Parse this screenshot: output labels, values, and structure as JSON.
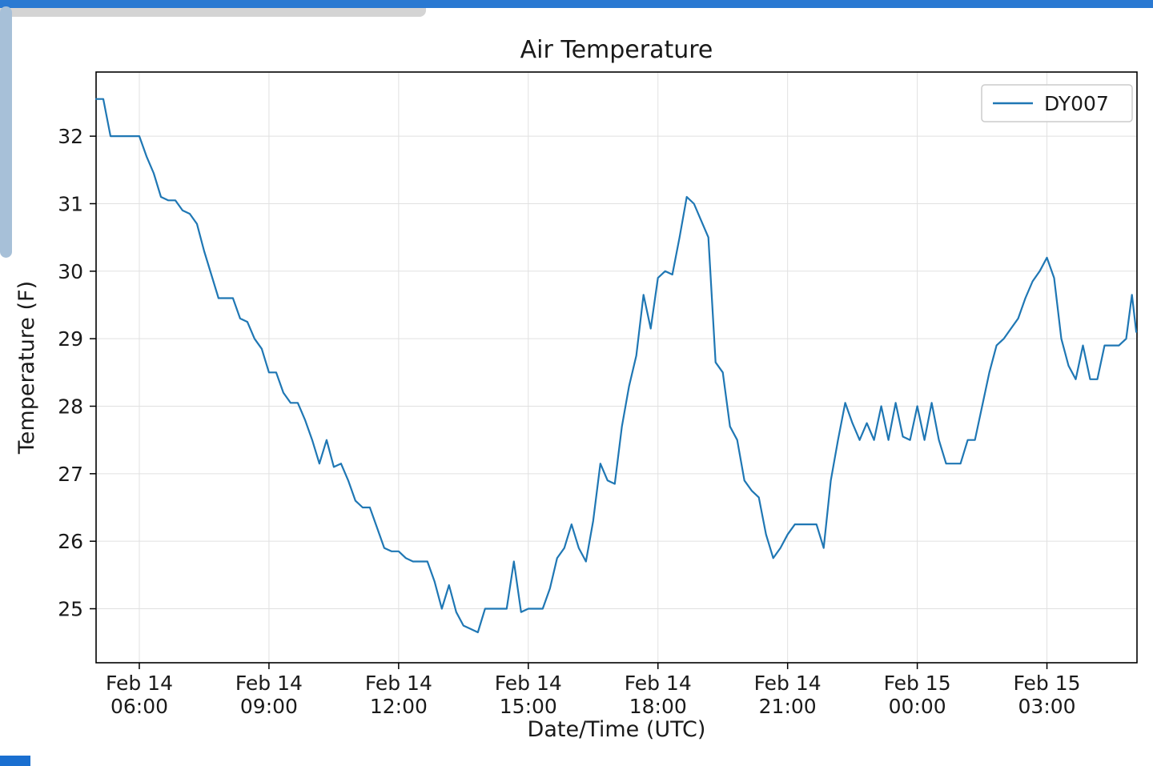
{
  "chrome": {
    "top_bar_color": "#2a79d2",
    "toolbar_remnant_color": "#d4d4d4",
    "scrollbar_color": "#a7c0d8",
    "bottom_fragment_color": "#1a6fd0",
    "background_color": "#ffffff"
  },
  "chart_data": {
    "type": "line",
    "title": "Air Temperature",
    "xlabel": "Date/Time (UTC)",
    "ylabel": "Temperature (F)",
    "grid": true,
    "grid_color": "#e1e1e1",
    "axis_color": "#000000",
    "legend": {
      "position": "upper right",
      "entries": [
        {
          "label": "DY007",
          "color": "#1f77b4"
        }
      ]
    },
    "xlim": [
      "02-14 05:00",
      "02-15 05:05"
    ],
    "ylim": [
      24.2,
      32.95
    ],
    "y_ticks": [
      25,
      26,
      27,
      28,
      29,
      30,
      31,
      32
    ],
    "x_ticks": [
      {
        "time": "02-14 06:00",
        "line1": "Feb 14",
        "line2": "06:00"
      },
      {
        "time": "02-14 09:00",
        "line1": "Feb 14",
        "line2": "09:00"
      },
      {
        "time": "02-14 12:00",
        "line1": "Feb 14",
        "line2": "12:00"
      },
      {
        "time": "02-14 15:00",
        "line1": "Feb 14",
        "line2": "15:00"
      },
      {
        "time": "02-14 18:00",
        "line1": "Feb 14",
        "line2": "18:00"
      },
      {
        "time": "02-14 21:00",
        "line1": "Feb 14",
        "line2": "21:00"
      },
      {
        "time": "02-15 00:00",
        "line1": "Feb 15",
        "line2": "00:00"
      },
      {
        "time": "02-15 03:00",
        "line1": "Feb 15",
        "line2": "03:00"
      }
    ],
    "series": [
      {
        "name": "DY007",
        "color": "#1f77b4",
        "x": [
          "02-14 05:00",
          "02-14 05:10",
          "02-14 05:20",
          "02-14 05:30",
          "02-14 05:40",
          "02-14 05:50",
          "02-14 06:00",
          "02-14 06:10",
          "02-14 06:20",
          "02-14 06:30",
          "02-14 06:40",
          "02-14 06:50",
          "02-14 07:00",
          "02-14 07:10",
          "02-14 07:20",
          "02-14 07:30",
          "02-14 07:40",
          "02-14 07:50",
          "02-14 08:00",
          "02-14 08:10",
          "02-14 08:20",
          "02-14 08:30",
          "02-14 08:40",
          "02-14 08:50",
          "02-14 09:00",
          "02-14 09:10",
          "02-14 09:20",
          "02-14 09:30",
          "02-14 09:40",
          "02-14 09:50",
          "02-14 10:00",
          "02-14 10:10",
          "02-14 10:20",
          "02-14 10:30",
          "02-14 10:40",
          "02-14 10:50",
          "02-14 11:00",
          "02-14 11:10",
          "02-14 11:20",
          "02-14 11:30",
          "02-14 11:40",
          "02-14 11:50",
          "02-14 12:00",
          "02-14 12:10",
          "02-14 12:20",
          "02-14 12:30",
          "02-14 12:40",
          "02-14 12:50",
          "02-14 13:00",
          "02-14 13:10",
          "02-14 13:20",
          "02-14 13:30",
          "02-14 13:40",
          "02-14 13:50",
          "02-14 14:00",
          "02-14 14:10",
          "02-14 14:20",
          "02-14 14:30",
          "02-14 14:40",
          "02-14 14:50",
          "02-14 15:00",
          "02-14 15:10",
          "02-14 15:20",
          "02-14 15:30",
          "02-14 15:40",
          "02-14 15:50",
          "02-14 16:00",
          "02-14 16:10",
          "02-14 16:20",
          "02-14 16:30",
          "02-14 16:40",
          "02-14 16:50",
          "02-14 17:00",
          "02-14 17:10",
          "02-14 17:20",
          "02-14 17:30",
          "02-14 17:40",
          "02-14 17:50",
          "02-14 18:00",
          "02-14 18:10",
          "02-14 18:20",
          "02-14 18:30",
          "02-14 18:40",
          "02-14 18:50",
          "02-14 19:00",
          "02-14 19:10",
          "02-14 19:20",
          "02-14 19:30",
          "02-14 19:40",
          "02-14 19:50",
          "02-14 20:00",
          "02-14 20:10",
          "02-14 20:20",
          "02-14 20:30",
          "02-14 20:40",
          "02-14 20:50",
          "02-14 21:00",
          "02-14 21:10",
          "02-14 21:20",
          "02-14 21:30",
          "02-14 21:40",
          "02-14 21:50",
          "02-14 22:00",
          "02-14 22:10",
          "02-14 22:20",
          "02-14 22:30",
          "02-14 22:40",
          "02-14 22:50",
          "02-14 23:00",
          "02-14 23:10",
          "02-14 23:20",
          "02-14 23:30",
          "02-14 23:40",
          "02-14 23:50",
          "02-15 00:00",
          "02-15 00:10",
          "02-15 00:20",
          "02-15 00:30",
          "02-15 00:40",
          "02-15 00:50",
          "02-15 01:00",
          "02-15 01:10",
          "02-15 01:20",
          "02-15 01:30",
          "02-15 01:40",
          "02-15 01:50",
          "02-15 02:00",
          "02-15 02:10",
          "02-15 02:20",
          "02-15 02:30",
          "02-15 02:40",
          "02-15 02:50",
          "02-15 03:00",
          "02-15 03:10",
          "02-15 03:20",
          "02-15 03:30",
          "02-15 03:40",
          "02-15 03:50",
          "02-15 04:00",
          "02-15 04:10",
          "02-15 04:20",
          "02-15 04:30",
          "02-15 04:40",
          "02-15 04:50",
          "02-15 04:58",
          "02-15 05:04"
        ],
        "y": [
          32.55,
          32.55,
          32.0,
          32.0,
          32.0,
          32.0,
          32.0,
          31.7,
          31.45,
          31.1,
          31.05,
          31.05,
          30.9,
          30.85,
          30.7,
          30.3,
          29.95,
          29.6,
          29.6,
          29.6,
          29.3,
          29.25,
          29.0,
          28.85,
          28.5,
          28.5,
          28.2,
          28.05,
          28.05,
          27.8,
          27.5,
          27.15,
          27.5,
          27.1,
          27.15,
          26.9,
          26.6,
          26.5,
          26.5,
          26.2,
          25.9,
          25.85,
          25.85,
          25.75,
          25.7,
          25.7,
          25.7,
          25.4,
          25.0,
          25.35,
          24.95,
          24.75,
          24.7,
          24.65,
          25.0,
          25.0,
          25.0,
          25.0,
          25.7,
          24.95,
          25.0,
          25.0,
          25.0,
          25.3,
          25.75,
          25.9,
          26.25,
          25.9,
          25.7,
          26.3,
          27.15,
          26.9,
          26.85,
          27.7,
          28.3,
          28.75,
          29.65,
          29.15,
          29.9,
          30.0,
          29.95,
          30.5,
          31.1,
          31.0,
          30.75,
          30.5,
          28.65,
          28.5,
          27.7,
          27.5,
          26.9,
          26.75,
          26.65,
          26.1,
          25.75,
          25.9,
          26.1,
          26.25,
          26.25,
          26.25,
          26.25,
          25.9,
          26.9,
          27.5,
          28.05,
          27.75,
          27.5,
          27.75,
          27.5,
          28.0,
          27.5,
          28.05,
          27.55,
          27.5,
          28.0,
          27.5,
          28.05,
          27.5,
          27.15,
          27.15,
          27.15,
          27.5,
          27.5,
          28.0,
          28.5,
          28.9,
          29.0,
          29.15,
          29.3,
          29.6,
          29.85,
          30.0,
          30.2,
          29.9,
          29.0,
          28.6,
          28.4,
          28.9,
          28.4,
          28.4,
          28.9,
          28.9,
          28.9,
          29.0,
          29.65,
          29.1
        ]
      }
    ]
  }
}
